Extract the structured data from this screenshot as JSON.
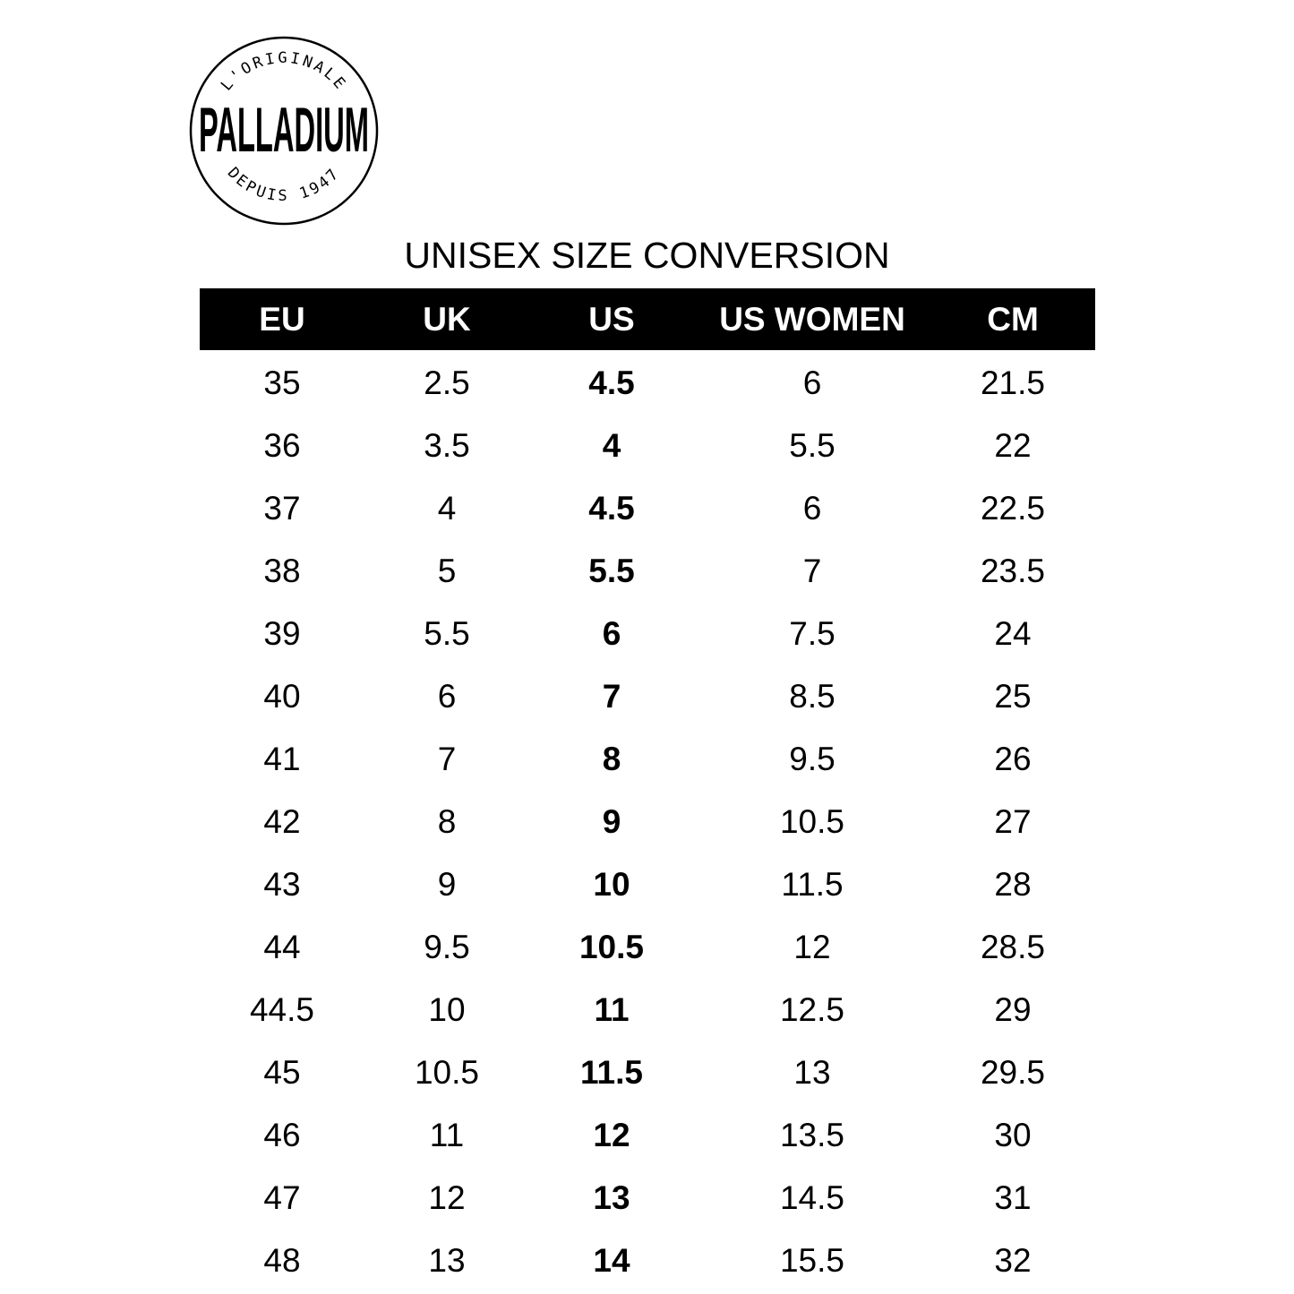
{
  "logo": {
    "brand": "PALLADIUM",
    "top_text": "L'ORIGINALE",
    "bottom_text": "DEPUIS 1947"
  },
  "title": "UNISEX SIZE CONVERSION",
  "columns": [
    "EU",
    "UK",
    "US",
    "US WOMEN",
    "CM"
  ],
  "rows": [
    [
      "35",
      "2.5",
      "4.5",
      "6",
      "21.5"
    ],
    [
      "36",
      "3.5",
      "4",
      "5.5",
      "22"
    ],
    [
      "37",
      "4",
      "4.5",
      "6",
      "22.5"
    ],
    [
      "38",
      "5",
      "5.5",
      "7",
      "23.5"
    ],
    [
      "39",
      "5.5",
      "6",
      "7.5",
      "24"
    ],
    [
      "40",
      "6",
      "7",
      "8.5",
      "25"
    ],
    [
      "41",
      "7",
      "8",
      "9.5",
      "26"
    ],
    [
      "42",
      "8",
      "9",
      "10.5",
      "27"
    ],
    [
      "43",
      "9",
      "10",
      "11.5",
      "28"
    ],
    [
      "44",
      "9.5",
      "10.5",
      "12",
      "28.5"
    ],
    [
      "44.5",
      "10",
      "11",
      "12.5",
      "29"
    ],
    [
      "45",
      "10.5",
      "11.5",
      "13",
      "29.5"
    ],
    [
      "46",
      "11",
      "12",
      "13.5",
      "30"
    ],
    [
      "47",
      "12",
      "13",
      "14.5",
      "31"
    ],
    [
      "48",
      "13",
      "14",
      "15.5",
      "32"
    ]
  ],
  "colors": {
    "header_bg": "#000000",
    "header_text": "#ffffff"
  }
}
